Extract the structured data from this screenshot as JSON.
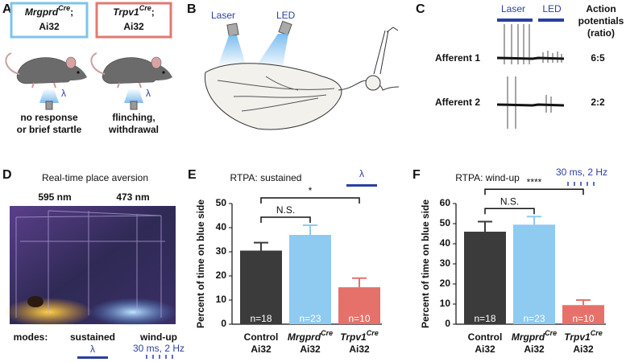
{
  "panels": {
    "a": {
      "letter": "A",
      "genotypes": [
        {
          "gene": "Mrgprd",
          "sup": "Cre",
          "punct": ";",
          "line2": "Ai32"
        },
        {
          "gene": "Trpv1",
          "sup": "Cre",
          "punct": ";",
          "line2": "Ai32"
        }
      ],
      "stimulus": [
        "λ",
        "λ"
      ],
      "outcomes": [
        [
          "no response",
          "or brief startle"
        ],
        [
          "flinching,",
          "withdrawal"
        ]
      ]
    },
    "b": {
      "letter": "B",
      "sources": [
        "Laser",
        "LED"
      ]
    },
    "c": {
      "letter": "C",
      "stimuli": [
        "Laser",
        "LED"
      ],
      "column_header": [
        "Action",
        "potentials",
        "(ratio)"
      ],
      "rows": [
        {
          "label": "Afferent 1",
          "ratio": "6:5"
        },
        {
          "label": "Afferent 2",
          "ratio": "2:2"
        }
      ]
    },
    "d": {
      "letter": "D",
      "title": "Real-time place aversion",
      "wavelengths": [
        "595 nm",
        "473 nm"
      ],
      "modes_label": "modes:",
      "modes": [
        "sustained",
        "wind-up"
      ],
      "sustained_symbol": "λ",
      "windup_pattern": "30 ms, 2 Hz"
    }
  },
  "chart_data": [
    {
      "type": "bar",
      "letter": "E",
      "title": "RTPA: sustained",
      "stimulus": "λ",
      "ylabel": "Percent of time on blue side",
      "categories": [
        "Control",
        "Mrgprd",
        "Trpv1"
      ],
      "category_superscripts": [
        null,
        "Cre",
        "Cre"
      ],
      "category_sublabels": [
        "Ai32",
        "Ai32",
        "Ai32"
      ],
      "colors": [
        "#3b3b3b",
        "#8fcaf0",
        "#e6716b"
      ],
      "values": [
        30.5,
        37,
        15.3
      ],
      "errors": [
        3.3,
        4,
        3.8
      ],
      "n_labels": [
        "n=18",
        "n=23",
        "n=10"
      ],
      "comparisons": [
        "N.S.",
        "*"
      ],
      "ylim": [
        0,
        50
      ],
      "yticks": [
        0,
        10,
        20,
        30,
        40,
        50
      ]
    },
    {
      "type": "bar",
      "letter": "F",
      "title": "RTPA: wind-up",
      "stimulus": "30 ms, 2 Hz",
      "ylabel": "Percent of time on blue side",
      "categories": [
        "Control",
        "Mrgprd",
        "Trpv1"
      ],
      "category_superscripts": [
        null,
        "Cre",
        "Cre"
      ],
      "category_sublabels": [
        "Ai32",
        "Ai32",
        "Ai32"
      ],
      "colors": [
        "#3b3b3b",
        "#8fcaf0",
        "#e6716b"
      ],
      "values": [
        46,
        49.5,
        9.5
      ],
      "errors": [
        5,
        4,
        2.5
      ],
      "n_labels": [
        "n=18",
        "n=23",
        "n=10"
      ],
      "comparisons": [
        "N.S.",
        "****"
      ],
      "ylim": [
        0,
        60
      ],
      "yticks": [
        0,
        10,
        20,
        30,
        40,
        50,
        60
      ]
    }
  ]
}
